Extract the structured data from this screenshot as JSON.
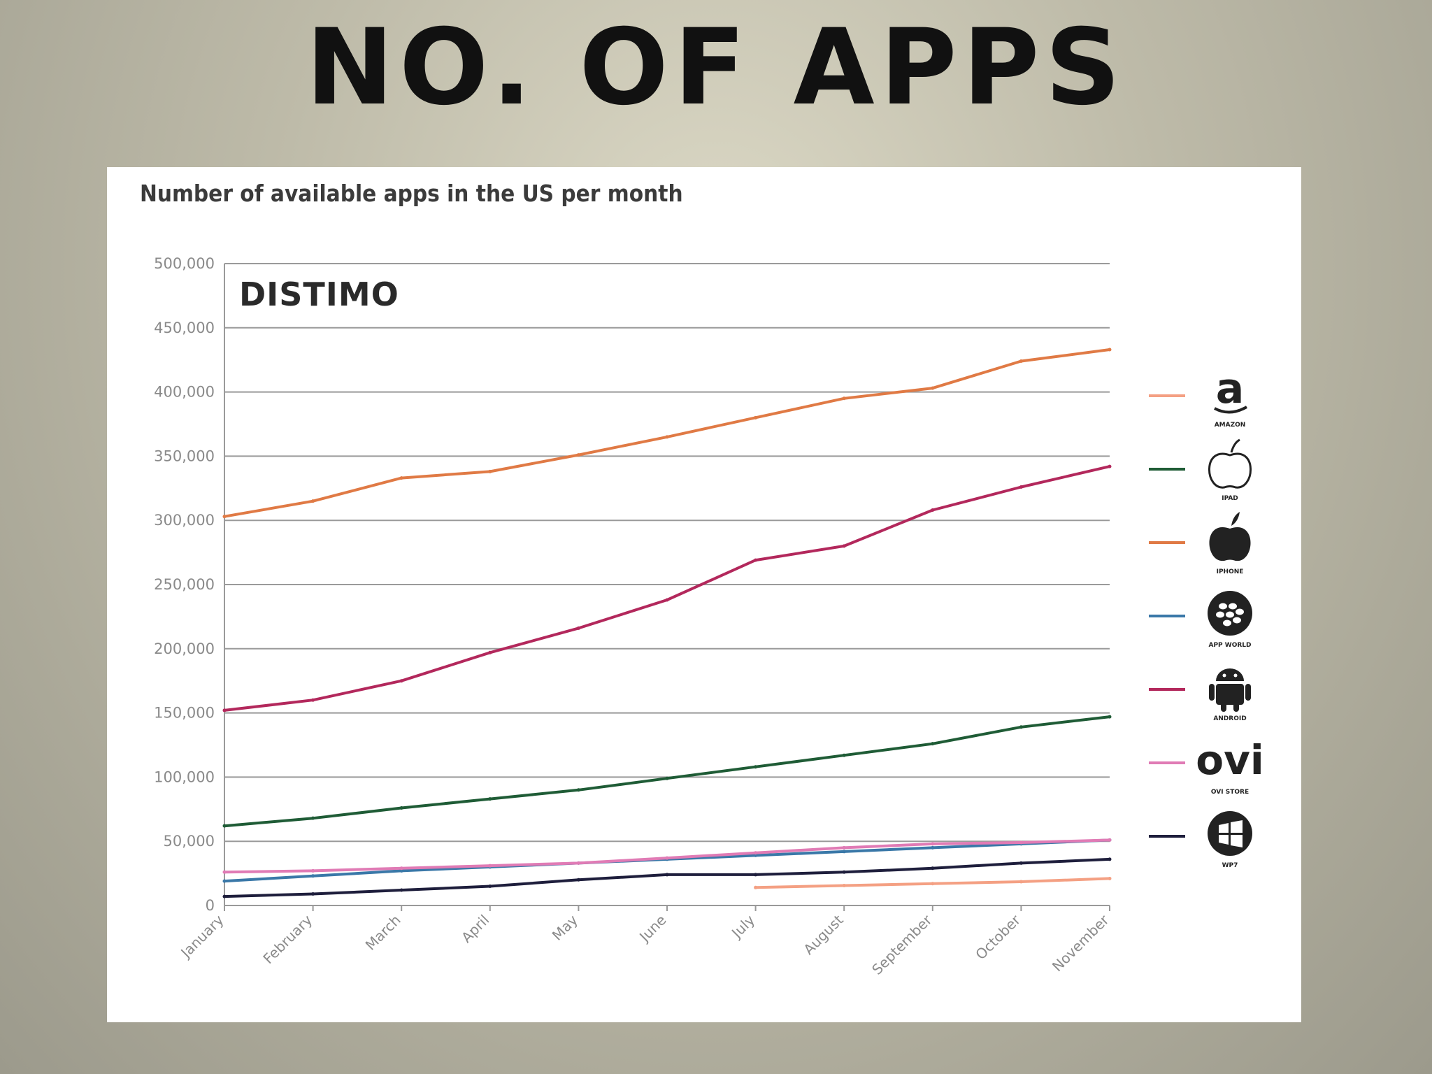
{
  "slide": {
    "title": "NO. OF APPS"
  },
  "chart_data": {
    "type": "line",
    "title": "Number of available apps in the US per month",
    "brand": "DISTIMO",
    "xlabel": "",
    "ylabel": "",
    "ylim": [
      0,
      500000
    ],
    "y_ticks": [
      "0",
      "50,000",
      "100,000",
      "150,000",
      "200,000",
      "250,000",
      "300,000",
      "350,000",
      "400,000",
      "450,000",
      "500,000"
    ],
    "categories": [
      "January",
      "February",
      "March",
      "April",
      "May",
      "June",
      "July",
      "August",
      "September",
      "October",
      "November"
    ],
    "grid": true,
    "legend_position": "right",
    "series": [
      {
        "name": "AMAZON",
        "icon": "amazon-icon",
        "color": "#f4a083",
        "values": [
          null,
          null,
          null,
          null,
          null,
          null,
          14000,
          15500,
          17000,
          18500,
          21000
        ]
      },
      {
        "name": "IPAD",
        "icon": "apple-outline-icon",
        "color": "#1f5c36",
        "values": [
          62000,
          68000,
          76000,
          83000,
          90000,
          99000,
          108000,
          117000,
          126000,
          139000,
          147000
        ]
      },
      {
        "name": "IPHONE",
        "icon": "apple-icon",
        "color": "#e07a45",
        "values": [
          303000,
          315000,
          333000,
          338000,
          351000,
          365000,
          380000,
          395000,
          403000,
          424000,
          433000
        ]
      },
      {
        "name": "APP WORLD",
        "icon": "blackberry-icon",
        "color": "#3a78a8",
        "values": [
          19000,
          23000,
          27000,
          30000,
          33000,
          36000,
          39000,
          42000,
          45000,
          48000,
          51000
        ]
      },
      {
        "name": "ANDROID",
        "icon": "android-icon",
        "color": "#b3285c",
        "values": [
          152000,
          160000,
          175000,
          197000,
          216000,
          238000,
          269000,
          280000,
          308000,
          326000,
          342000
        ]
      },
      {
        "name": "OVI STORE",
        "icon": "ovi-icon",
        "color": "#e07bb5",
        "values": [
          26000,
          27000,
          29000,
          31000,
          33000,
          37000,
          41000,
          45000,
          48000,
          49000,
          51000
        ]
      },
      {
        "name": "WP7",
        "icon": "windows-icon",
        "color": "#1e1e3c",
        "values": [
          7000,
          9000,
          12000,
          15000,
          20000,
          24000,
          24000,
          26000,
          29000,
          33000,
          36000
        ]
      }
    ]
  }
}
